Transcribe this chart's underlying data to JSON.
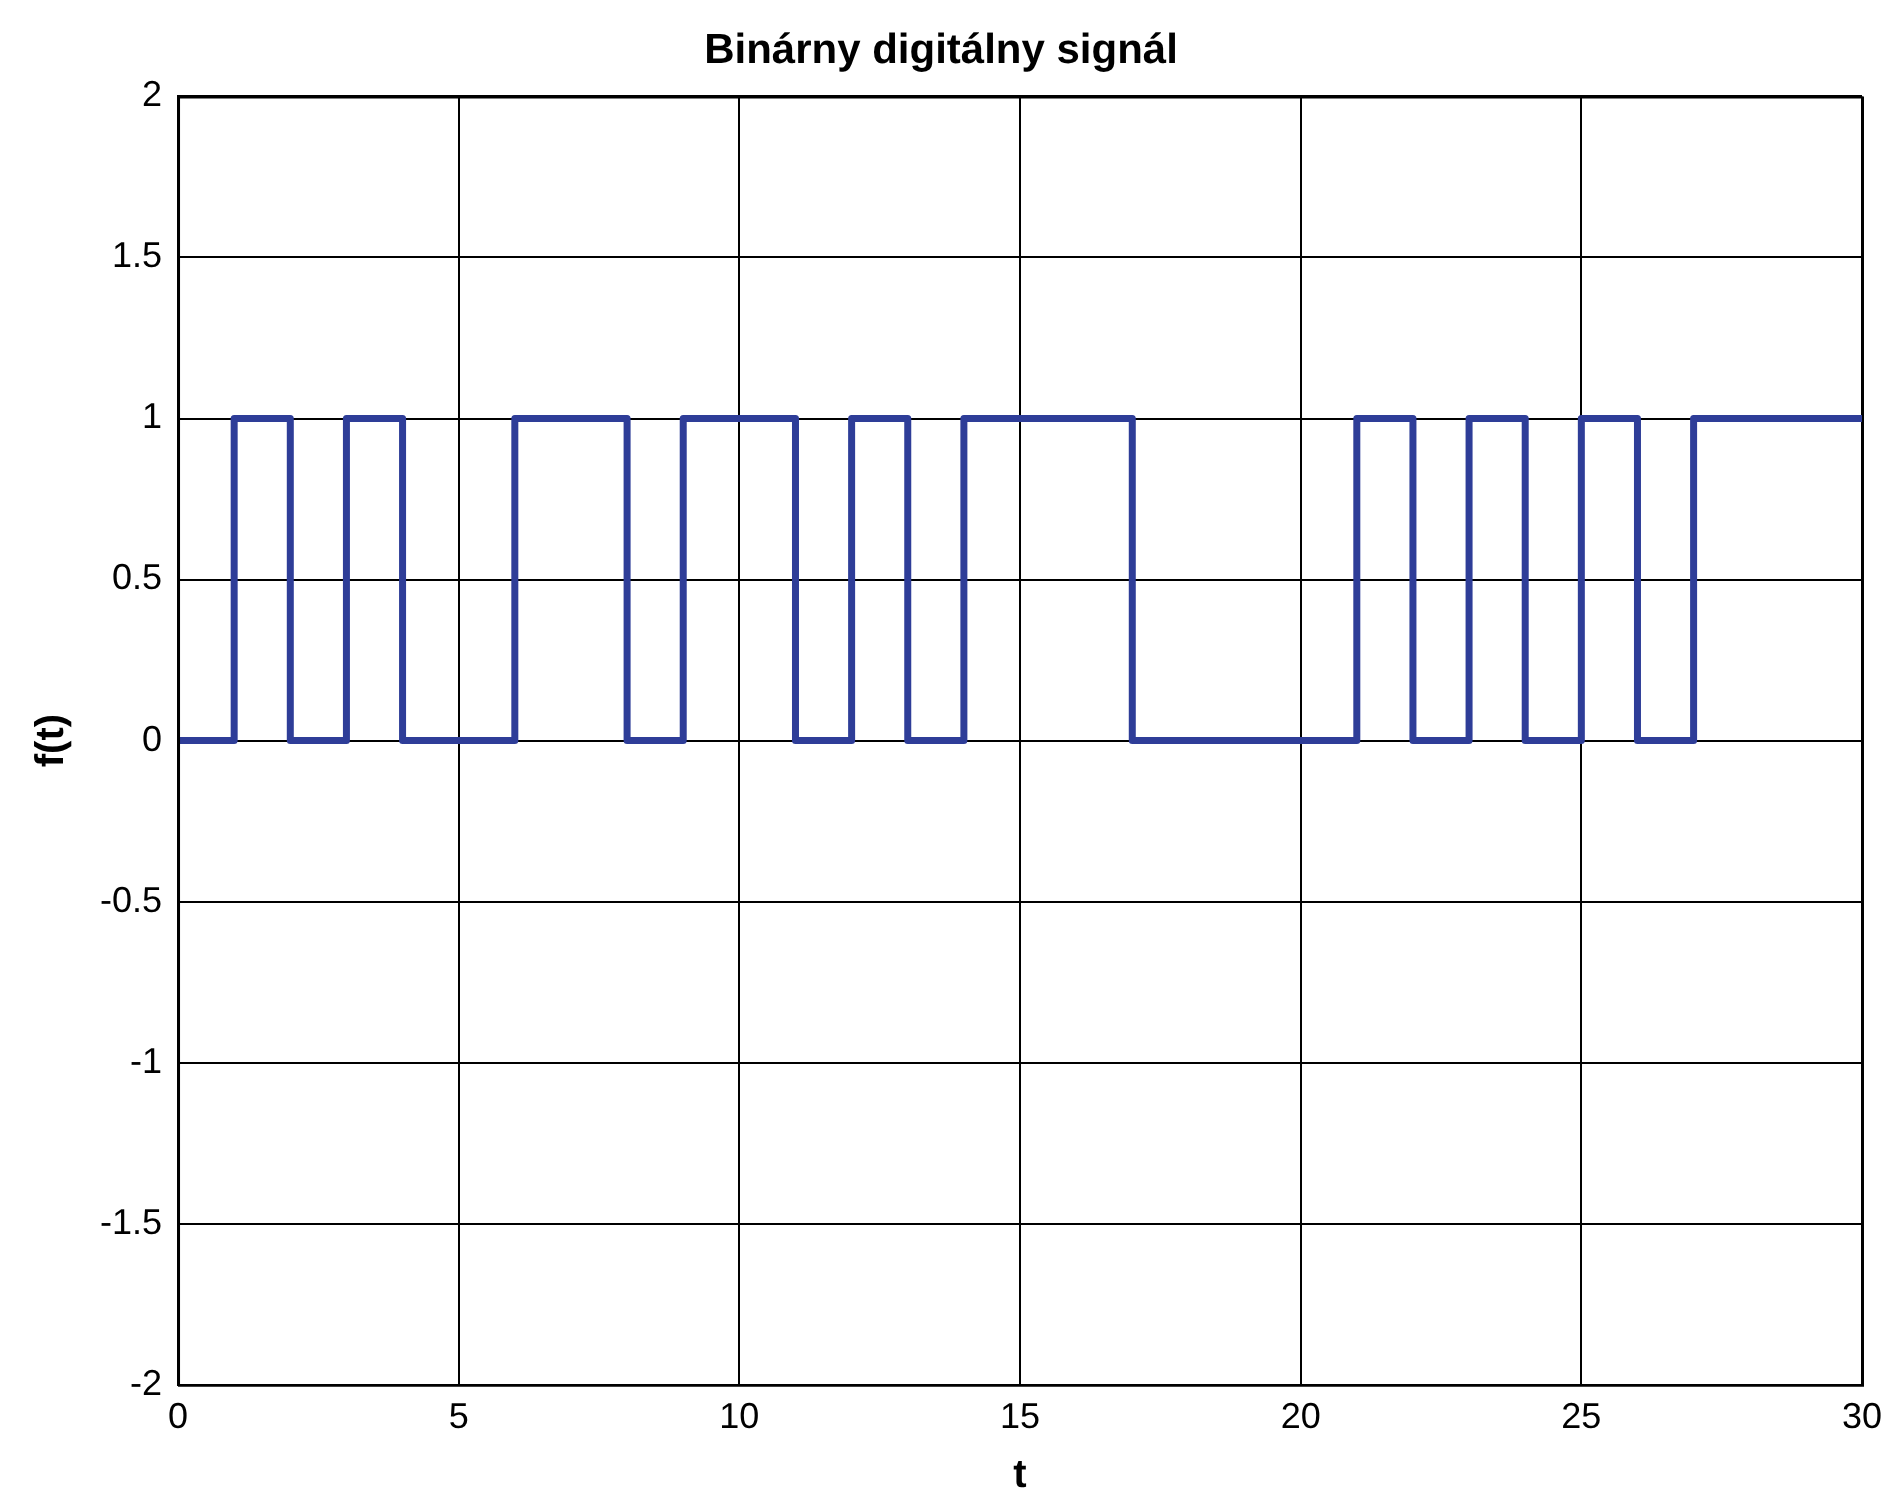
{
  "chart_data": {
    "type": "step",
    "title": "Binárny digitálny signál",
    "xlabel": "t",
    "ylabel": "f(t)",
    "x": [
      0,
      1,
      2,
      3,
      4,
      5,
      6,
      7,
      8,
      9,
      10,
      11,
      12,
      13,
      14,
      15,
      16,
      17,
      18,
      19,
      20,
      21,
      22,
      23,
      24,
      25,
      26,
      27,
      28,
      29,
      30
    ],
    "series": [
      {
        "color": "#2e3d98",
        "values": [
          0,
          1,
          0,
          1,
          0,
          0,
          1,
          1,
          0,
          1,
          1,
          0,
          1,
          0,
          1,
          1,
          1,
          0,
          0,
          0,
          0,
          1,
          0,
          1,
          0,
          1,
          0,
          1,
          1,
          1,
          1
        ]
      }
    ],
    "xlim": [
      0,
      30
    ],
    "xticks": [
      0,
      5,
      10,
      15,
      20,
      25,
      30
    ],
    "ylim": [
      -2,
      2
    ],
    "yticks": [
      -2,
      -1.5,
      -1,
      -0.5,
      0,
      0.5,
      1,
      1.5,
      2
    ],
    "grid": true,
    "legend": false,
    "marker": "none",
    "line_style": "solid"
  }
}
